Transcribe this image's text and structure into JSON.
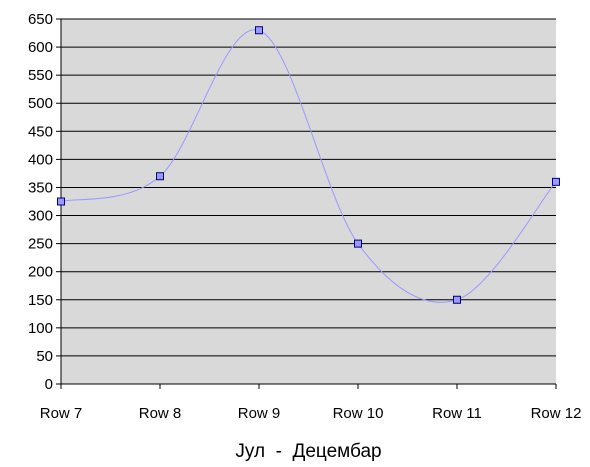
{
  "chart_data": {
    "type": "line",
    "categories": [
      "Row 7",
      "Row 8",
      "Row 9",
      "Row 10",
      "Row 11",
      "Row 12"
    ],
    "series": [
      {
        "values": [
          325,
          370,
          630,
          250,
          150,
          360
        ]
      }
    ],
    "xlabel": "Јул  -  Децембар",
    "ylabel": "",
    "ylim": [
      0,
      650
    ],
    "yticks": [
      0,
      50,
      100,
      150,
      200,
      250,
      300,
      350,
      400,
      450,
      500,
      550,
      600,
      650
    ],
    "grid": true,
    "smoothed": true,
    "legend": "none",
    "colors": {
      "plot_background": "#d9d9d9",
      "gridline": "#000000",
      "line": "#9999ff",
      "marker_fill": "#9999ff",
      "marker_stroke": "#000080"
    }
  }
}
